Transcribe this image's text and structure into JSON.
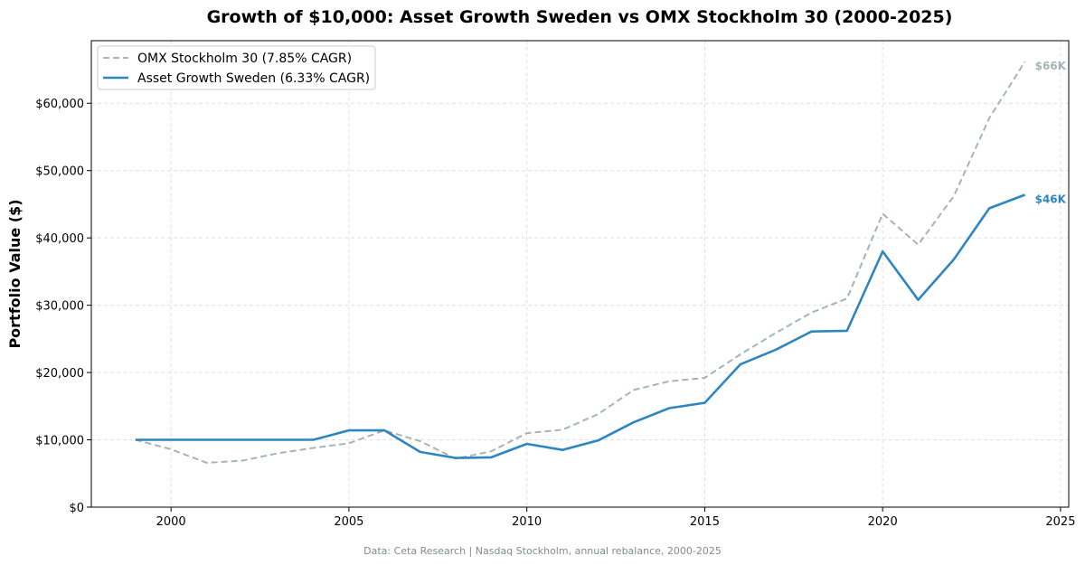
{
  "chart_data": {
    "type": "line",
    "title": "Growth of $10,000: Asset Growth Sweden vs OMX Stockholm 30 (2000-2025)",
    "xlabel": "",
    "ylabel": "Portfolio Value ($)",
    "footnote": "Data: Ceta Research | Nasdaq Stockholm, annual rebalance, 2000-2025",
    "xlim": [
      1997.76,
      2025.23
    ],
    "ylim": [
      0,
      69300
    ],
    "grid": true,
    "legend_position": "top-left",
    "x_ticks": [
      2000,
      2005,
      2010,
      2015,
      2020,
      2025
    ],
    "x_tick_labels": [
      "2000",
      "2005",
      "2010",
      "2015",
      "2020",
      "2025"
    ],
    "y_ticks": [
      0,
      10000,
      20000,
      30000,
      40000,
      50000,
      60000
    ],
    "y_tick_labels": [
      "$0",
      "$10,000",
      "$20,000",
      "$30,000",
      "$40,000",
      "$50,000",
      "$60,000"
    ],
    "x": [
      1999,
      2000,
      2001,
      2002,
      2003,
      2004,
      2005,
      2006,
      2007,
      2008,
      2009,
      2010,
      2011,
      2012,
      2013,
      2014,
      2015,
      2016,
      2017,
      2018,
      2019,
      2020,
      2021,
      2022,
      2023,
      2024
    ],
    "series": [
      {
        "name": "OMX Stockholm 30 (7.85% CAGR)",
        "color": "#a6b4b4",
        "style": "dashed",
        "end_label": "$66K",
        "values": [
          10000,
          8600,
          6600,
          6900,
          8000,
          8800,
          9500,
          11400,
          9800,
          7200,
          8300,
          11000,
          11500,
          13800,
          17400,
          18700,
          19200,
          22700,
          25900,
          28900,
          31000,
          43600,
          39000,
          46200,
          57800,
          66200
        ]
      },
      {
        "name": "Asset Growth Sweden (6.33% CAGR)",
        "color": "#2e86c1",
        "style": "solid",
        "end_label": "$46K",
        "values": [
          10000,
          10000,
          10000,
          10000,
          10000,
          10000,
          11400,
          11400,
          8200,
          7300,
          7400,
          9400,
          8500,
          9900,
          12600,
          14700,
          15500,
          21200,
          23400,
          26100,
          26200,
          38000,
          30800,
          36800,
          44400,
          46400
        ]
      }
    ]
  }
}
